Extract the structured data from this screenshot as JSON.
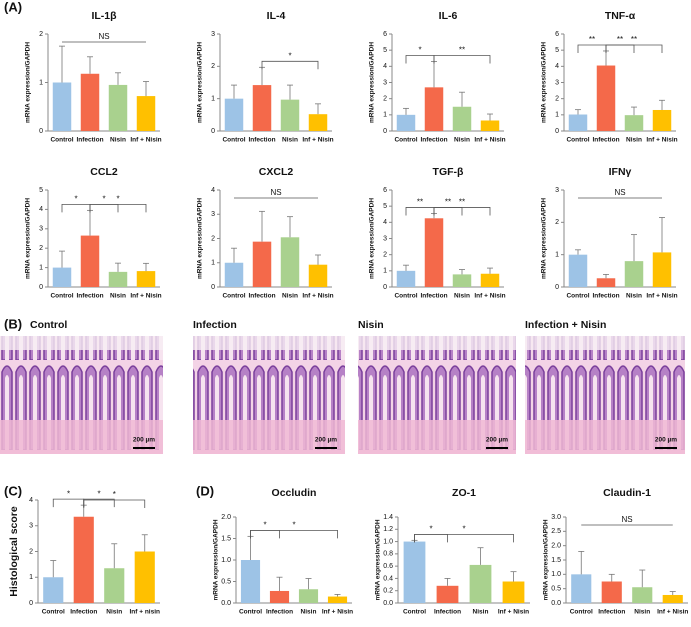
{
  "panel_labels": [
    "(A)",
    "(B)",
    "(C)",
    "(D)"
  ],
  "histology": {
    "titles": [
      "Control",
      "Infection",
      "Nisin",
      "Infection + Nisin"
    ],
    "scale_bar": "200 µm"
  },
  "chart_data": [
    {
      "type": "bar",
      "title": "IL-1β",
      "ylabel": "mRNA expression/GAPDH",
      "categories": [
        "Control",
        "Infection",
        "Nisin",
        "Inf + Nisin"
      ],
      "values": [
        1.0,
        1.18,
        0.95,
        0.72
      ],
      "errors": [
        0.75,
        0.35,
        0.25,
        0.3
      ],
      "colors": [
        "#9dc3e6",
        "#f4694a",
        "#a9d18e",
        "#ffc000"
      ],
      "ylim": [
        0,
        2
      ],
      "yticks": [
        0,
        1,
        2
      ],
      "annotations": [
        {
          "text": "NS",
          "between": [
            "Control",
            "Inf + Nisin"
          ]
        }
      ]
    },
    {
      "type": "bar",
      "title": "IL-4",
      "ylabel": "mRNA expression/GAPDH",
      "categories": [
        "Control",
        "Infection",
        "Nisin",
        "Inf + Nisin"
      ],
      "values": [
        1.0,
        1.42,
        0.97,
        0.52
      ],
      "errors": [
        0.42,
        0.55,
        0.45,
        0.32
      ],
      "colors": [
        "#9dc3e6",
        "#f4694a",
        "#a9d18e",
        "#ffc000"
      ],
      "ylim": [
        0,
        3
      ],
      "yticks": [
        0,
        1,
        2,
        3
      ],
      "annotations": [
        {
          "text": "*",
          "between": [
            "Infection",
            "Inf + Nisin"
          ]
        }
      ]
    },
    {
      "type": "bar",
      "title": "IL-6",
      "ylabel": "mRNA expression/GAPDH",
      "categories": [
        "Control",
        "Infection",
        "Nisin",
        "Inf + Nisin"
      ],
      "values": [
        1.0,
        2.7,
        1.5,
        0.65
      ],
      "errors": [
        0.4,
        1.6,
        0.9,
        0.4
      ],
      "colors": [
        "#9dc3e6",
        "#f4694a",
        "#a9d18e",
        "#ffc000"
      ],
      "ylim": [
        0,
        6
      ],
      "yticks": [
        0,
        1,
        2,
        3,
        4,
        5,
        6
      ],
      "annotations": [
        {
          "text": "*",
          "between": [
            "Control",
            "Infection"
          ]
        },
        {
          "text": "**",
          "between": [
            "Infection",
            "Inf + Nisin"
          ]
        }
      ]
    },
    {
      "type": "bar",
      "title": "TNF-α",
      "ylabel": "mRNA expression/GAPDH",
      "categories": [
        "Control",
        "Infection",
        "Nisin",
        "Inf + Nisin"
      ],
      "values": [
        1.02,
        4.05,
        0.98,
        1.3
      ],
      "errors": [
        0.3,
        0.9,
        0.5,
        0.6
      ],
      "colors": [
        "#9dc3e6",
        "#f4694a",
        "#a9d18e",
        "#ffc000"
      ],
      "ylim": [
        0,
        6
      ],
      "yticks": [
        0,
        1,
        2,
        3,
        4,
        5,
        6
      ],
      "annotations": [
        {
          "text": "**",
          "between": [
            "Control",
            "Infection"
          ]
        },
        {
          "text": "**",
          "between": [
            "Infection",
            "Nisin"
          ]
        },
        {
          "text": "**",
          "between": [
            "Infection",
            "Inf + Nisin"
          ]
        }
      ]
    },
    {
      "type": "bar",
      "title": "CCL2",
      "ylabel": "mRNA expression/GAPDH",
      "categories": [
        "Control",
        "Infection",
        "Nisin",
        "Inf + Nisin"
      ],
      "values": [
        1.0,
        2.65,
        0.78,
        0.82
      ],
      "errors": [
        0.85,
        1.3,
        0.45,
        0.4
      ],
      "colors": [
        "#9dc3e6",
        "#f4694a",
        "#a9d18e",
        "#ffc000"
      ],
      "ylim": [
        0,
        5
      ],
      "yticks": [
        0,
        1,
        2,
        3,
        4,
        5
      ],
      "annotations": [
        {
          "text": "*",
          "between": [
            "Control",
            "Infection"
          ]
        },
        {
          "text": "*",
          "between": [
            "Infection",
            "Nisin"
          ]
        },
        {
          "text": "*",
          "between": [
            "Infection",
            "Inf + Nisin"
          ]
        }
      ]
    },
    {
      "type": "bar",
      "title": "CXCL2",
      "ylabel": "mRNA expression/GAPDH",
      "categories": [
        "Control",
        "Infection",
        "Nisin",
        "Inf + Nisin"
      ],
      "values": [
        1.0,
        1.87,
        2.05,
        0.92
      ],
      "errors": [
        0.6,
        1.25,
        0.85,
        0.4
      ],
      "colors": [
        "#9dc3e6",
        "#f4694a",
        "#a9d18e",
        "#ffc000"
      ],
      "ylim": [
        0,
        4
      ],
      "yticks": [
        0,
        1,
        2,
        3,
        4
      ],
      "annotations": [
        {
          "text": "NS",
          "between": [
            "Control",
            "Inf + Nisin"
          ]
        }
      ]
    },
    {
      "type": "bar",
      "title": "TGF-β",
      "ylabel": "mRNA expression/GAPDH",
      "categories": [
        "Control",
        "Infection",
        "Nisin",
        "Inf + Nisin"
      ],
      "values": [
        1.0,
        4.25,
        0.78,
        0.82
      ],
      "errors": [
        0.35,
        0.3,
        0.3,
        0.35
      ],
      "colors": [
        "#9dc3e6",
        "#f4694a",
        "#a9d18e",
        "#ffc000"
      ],
      "ylim": [
        0,
        6
      ],
      "yticks": [
        0,
        1,
        2,
        3,
        4,
        5,
        6
      ],
      "annotations": [
        {
          "text": "**",
          "between": [
            "Control",
            "Infection"
          ]
        },
        {
          "text": "**",
          "between": [
            "Infection",
            "Nisin"
          ]
        },
        {
          "text": "**",
          "between": [
            "Infection",
            "Inf + Nisin"
          ]
        }
      ]
    },
    {
      "type": "bar",
      "title": "IFNγ",
      "ylabel": "mRNA expression/GAPDH",
      "categories": [
        "Control",
        "Infection",
        "Nisin",
        "Inf + Nisin"
      ],
      "values": [
        1.0,
        0.27,
        0.8,
        1.07
      ],
      "errors": [
        0.15,
        0.12,
        0.82,
        1.08
      ],
      "colors": [
        "#9dc3e6",
        "#f4694a",
        "#a9d18e",
        "#ffc000"
      ],
      "ylim": [
        0,
        3
      ],
      "yticks": [
        0,
        1,
        2,
        3
      ],
      "annotations": [
        {
          "text": "NS",
          "between": [
            "Control",
            "Inf + Nisin"
          ]
        }
      ]
    },
    {
      "type": "bar",
      "ylabel": "Histological score",
      "categories": [
        "Control",
        "Infection",
        "Nisin",
        "Inf + nisin"
      ],
      "values": [
        1.0,
        3.35,
        1.35,
        2.0
      ],
      "errors": [
        0.65,
        0.45,
        0.95,
        0.65
      ],
      "colors": [
        "#9dc3e6",
        "#f4694a",
        "#a9d18e",
        "#ffc000"
      ],
      "ylim": [
        0,
        4
      ],
      "yticks": [
        0,
        1,
        2,
        3,
        4
      ],
      "annotations": [
        {
          "text": "*",
          "between": [
            "Control",
            "Infection"
          ]
        },
        {
          "text": "*",
          "between": [
            "Infection",
            "Nisin"
          ]
        },
        {
          "text": "*",
          "between": [
            "Infection",
            "Inf + nisin"
          ]
        }
      ]
    },
    {
      "type": "bar",
      "title": "Occludin",
      "ylabel": "mRNA expression/GAPDH",
      "categories": [
        "Control",
        "Infection",
        "Nisin",
        "Inf + Nisin"
      ],
      "values": [
        1.0,
        0.28,
        0.32,
        0.15
      ],
      "errors": [
        0.55,
        0.32,
        0.25,
        0.05
      ],
      "colors": [
        "#9dc3e6",
        "#f4694a",
        "#a9d18e",
        "#ffc000"
      ],
      "ylim": [
        0,
        2
      ],
      "yticks": [
        {
          "value": 0,
          "label": "0.0"
        },
        {
          "value": 0.5,
          "label": "0.5"
        },
        {
          "value": 1,
          "label": "1.0"
        },
        {
          "value": 1.5,
          "label": "1.5"
        },
        {
          "value": 2,
          "label": "2.0"
        }
      ],
      "annotations": [
        {
          "text": "*",
          "between": [
            "Control",
            "Infection"
          ]
        },
        {
          "text": "*",
          "between": [
            "Control",
            "Inf + Nisin"
          ]
        }
      ]
    },
    {
      "type": "bar",
      "title": "ZO-1",
      "ylabel": "mRNA expression/GAPDH",
      "categories": [
        "Control",
        "Infection",
        "Nisin",
        "Inf + Nisin"
      ],
      "values": [
        1.0,
        0.28,
        0.62,
        0.35
      ],
      "errors": [
        0.02,
        0.12,
        0.28,
        0.16
      ],
      "colors": [
        "#9dc3e6",
        "#f4694a",
        "#a9d18e",
        "#ffc000"
      ],
      "ylim": [
        0,
        1.4
      ],
      "yticks": [
        {
          "value": 0,
          "label": "0.0"
        },
        {
          "value": 0.2,
          "label": "0.2"
        },
        {
          "value": 0.4,
          "label": "0.4"
        },
        {
          "value": 0.6,
          "label": "0.6"
        },
        {
          "value": 0.8,
          "label": "0.8"
        },
        {
          "value": 1,
          "label": "1.0"
        },
        {
          "value": 1.2,
          "label": "1.2"
        },
        {
          "value": 1.4,
          "label": "1.4"
        }
      ],
      "annotations": [
        {
          "text": "*",
          "between": [
            "Control",
            "Infection"
          ]
        },
        {
          "text": "*",
          "between": [
            "Control",
            "Inf + Nisin"
          ]
        }
      ]
    },
    {
      "type": "bar",
      "title": "Claudin-1",
      "ylabel": "mRNA expression/GAPDH",
      "categories": [
        "Control",
        "Infection",
        "Nisin",
        "Inf + Nisin"
      ],
      "values": [
        1.0,
        0.75,
        0.55,
        0.28
      ],
      "errors": [
        0.8,
        0.25,
        0.6,
        0.12
      ],
      "colors": [
        "#9dc3e6",
        "#f4694a",
        "#a9d18e",
        "#ffc000"
      ],
      "ylim": [
        0,
        3
      ],
      "yticks": [
        {
          "value": 0,
          "label": "0.0"
        },
        {
          "value": 0.5,
          "label": "0.5"
        },
        {
          "value": 1,
          "label": "1.0"
        },
        {
          "value": 1.5,
          "label": "1.5"
        },
        {
          "value": 2,
          "label": "2.0"
        },
        {
          "value": 2.5,
          "label": "2.5"
        },
        {
          "value": 3,
          "label": "3.0"
        }
      ],
      "annotations": [
        {
          "text": "NS",
          "between": [
            "Control",
            "Inf + Nisin"
          ]
        }
      ]
    }
  ]
}
